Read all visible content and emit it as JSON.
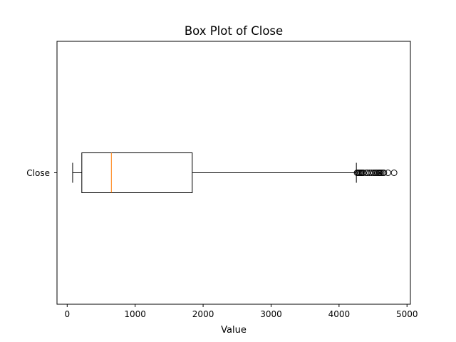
{
  "chart_data": {
    "type": "boxplot",
    "title": "Box Plot of Close",
    "xlabel": "Value",
    "ylabel": "",
    "xlim": [
      -150,
      5050
    ],
    "xticks": [
      0,
      1000,
      2000,
      3000,
      4000,
      5000
    ],
    "grid": false,
    "categories": [
      "Close"
    ],
    "series": [
      {
        "name": "Close",
        "whisker_low": 80,
        "q1": 215,
        "median": 650,
        "q3": 1840,
        "whisker_high": 4255,
        "outliers": [
          4265,
          4280,
          4295,
          4310,
          4325,
          4340,
          4360,
          4400,
          4420,
          4450,
          4480,
          4510,
          4530,
          4550,
          4570,
          4590,
          4600,
          4620,
          4640,
          4660,
          4720,
          4810
        ]
      }
    ],
    "colors": {
      "box": "#000000",
      "median": "#ff7f0e",
      "outlier": "#000000"
    }
  }
}
